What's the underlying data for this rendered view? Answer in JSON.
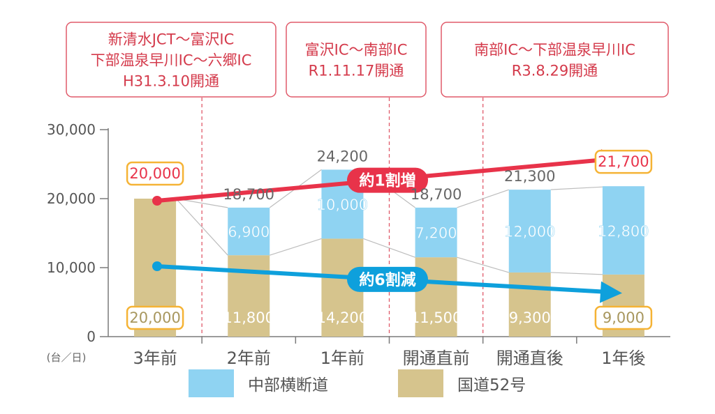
{
  "chart_data": {
    "type": "bar",
    "stacked": true,
    "unit_label": "(台／日)",
    "categories": [
      "3年前",
      "2年前",
      "1年前",
      "開通直前",
      "開通直後",
      "1年後"
    ],
    "series": [
      {
        "name": "国道52号",
        "values": [
          20000,
          11800,
          14200,
          11500,
          9300,
          9000
        ],
        "labels": [
          "20,000",
          "11,800",
          "14,200",
          "11,500",
          "9,300",
          "9,000"
        ],
        "color": "#d6c48d"
      },
      {
        "name": "中部横断道",
        "values": [
          0,
          6900,
          10000,
          7200,
          12000,
          12800
        ],
        "labels": [
          "",
          "6,900",
          "10,000",
          "7,200",
          "12,000",
          "12,800"
        ],
        "color": "#8fd3f2"
      }
    ],
    "totals": [
      20000,
      18700,
      24200,
      18700,
      21300,
      21700
    ],
    "total_labels": [
      "20,000",
      "18,700",
      "24,200",
      "18,700",
      "21,300",
      "21,700"
    ],
    "highlighted_totals": [
      0,
      5
    ],
    "highlighted_bottom": [
      0,
      5
    ],
    "ylim": [
      0,
      30000
    ],
    "yticks": [
      0,
      10000,
      20000,
      30000
    ],
    "ytick_labels": [
      "0",
      "10,000",
      "20,000",
      "30,000"
    ],
    "events": [
      {
        "after_category": 0,
        "lines": [
          "新清水JCT〜富沢IC",
          "下部温泉早川IC〜六郷IC",
          "H31.3.10開通"
        ]
      },
      {
        "after_category": 2,
        "lines": [
          "富沢IC〜南部IC",
          "R1.11.17開通"
        ]
      },
      {
        "after_category": 3,
        "lines": [
          "南部IC〜下部温泉早川IC",
          "R3.8.29開通"
        ]
      }
    ],
    "trends": [
      {
        "label": "約1割増",
        "from": 20000,
        "to": 21700,
        "color": "#e8334a"
      },
      {
        "label": "約6割減",
        "from": 10000,
        "to": 6000,
        "color": "#0ea0dc"
      }
    ],
    "legend": [
      {
        "label": "中部横断道",
        "color": "#8fd3f2"
      },
      {
        "label": "国道52号",
        "color": "#d6c48d"
      }
    ],
    "colors": {
      "accent_red": "#e8334a",
      "accent_blue": "#0ea0dc",
      "highlight_box": "#f5b335",
      "event_border": "#e05a6a"
    }
  }
}
